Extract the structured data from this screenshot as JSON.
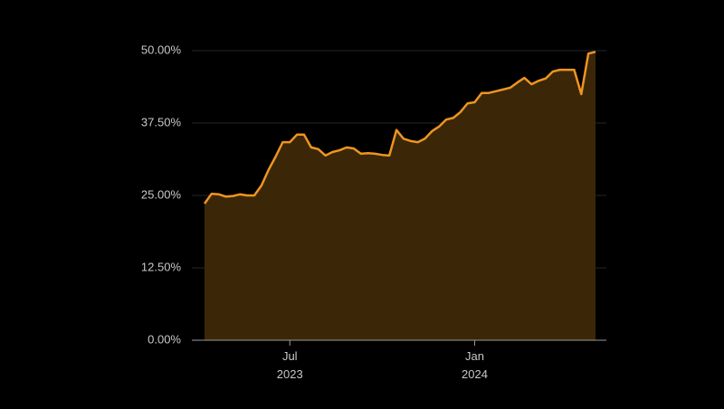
{
  "chart_data": {
    "type": "area",
    "categories": [
      null,
      null,
      null,
      null,
      null,
      null,
      null,
      null,
      null,
      null,
      null,
      null,
      "Jul 2023",
      null,
      null,
      null,
      null,
      null,
      null,
      null,
      null,
      null,
      null,
      null,
      null,
      null,
      null,
      null,
      null,
      null,
      null,
      null,
      null,
      null,
      null,
      null,
      null,
      null,
      "Jan 2024",
      null,
      null,
      null,
      null,
      null,
      null,
      null,
      null,
      null,
      null,
      null,
      null,
      null,
      null,
      null,
      null,
      null
    ],
    "values": [
      23.6,
      25.3,
      25.2,
      24.8,
      24.9,
      25.2,
      25.0,
      25.0,
      26.7,
      29.4,
      31.7,
      34.2,
      34.2,
      35.5,
      35.5,
      33.3,
      33.0,
      31.9,
      32.5,
      32.8,
      33.3,
      33.1,
      32.2,
      32.3,
      32.2,
      32.0,
      31.9,
      36.3,
      34.8,
      34.4,
      34.2,
      34.8,
      36.1,
      36.9,
      38.1,
      38.4,
      39.4,
      40.9,
      41.1,
      42.7,
      42.7,
      43.0,
      43.3,
      43.6,
      44.5,
      45.3,
      44.2,
      44.8,
      45.2,
      46.4,
      46.7,
      46.7,
      46.7,
      42.5,
      49.5,
      49.8
    ],
    "color": "#ee9521",
    "area_color": "#3b2707",
    "ylim": [
      0,
      50
    ],
    "yticks": [
      {
        "value": 0,
        "label": "0.00%"
      },
      {
        "value": 12.5,
        "label": "12.50%"
      },
      {
        "value": 25,
        "label": "25.00%"
      },
      {
        "value": 37.5,
        "label": "37.50%"
      },
      {
        "value": 50,
        "label": "50.00%"
      }
    ],
    "grid": true
  }
}
